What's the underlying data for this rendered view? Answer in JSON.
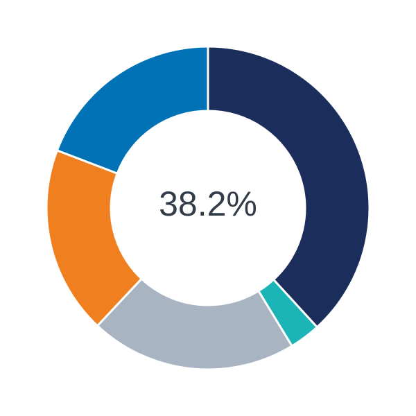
{
  "chart_data": {
    "type": "donut",
    "center_label": "38.2%",
    "values": [
      38.2,
      3.1,
      20.7,
      18.8,
      19.2
    ],
    "colors": [
      "#1b2d5b",
      "#1bb5b8",
      "#a9b4c2",
      "#f07f1f",
      "#0072b5"
    ]
  }
}
